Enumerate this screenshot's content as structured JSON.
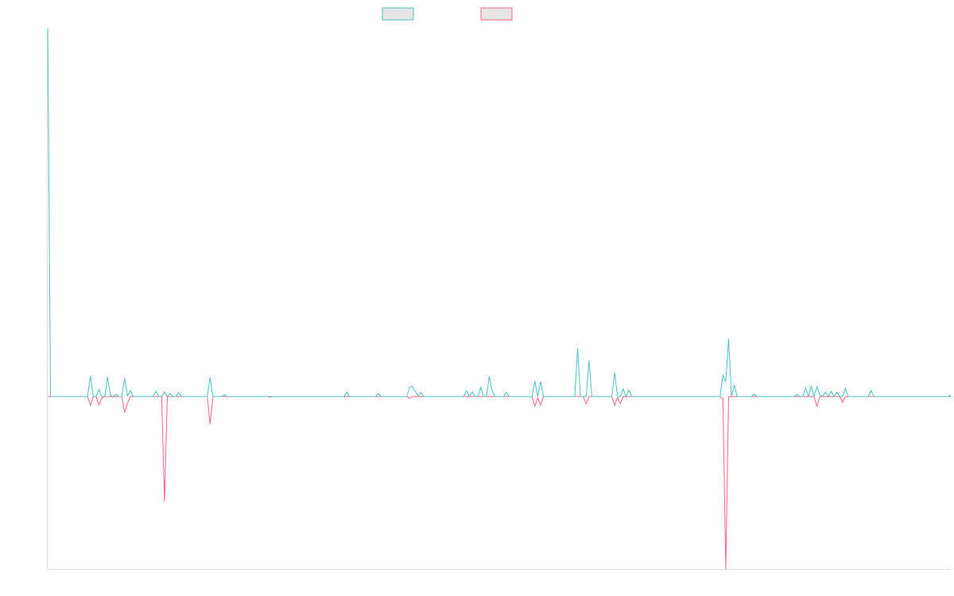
{
  "chart_data": {
    "type": "line",
    "title": "",
    "xlabel": "",
    "ylabel": "",
    "grid": false,
    "legend_position": "top-center",
    "x_count": 318,
    "ylim": [
      -0.3,
      0.64
    ],
    "colors": {
      "series_1": "#4bc0c0",
      "series_2": "#ff6384",
      "legend_fill": "#e6e6e6",
      "axis": "#e0e0e0"
    },
    "series": [
      {
        "color": "#4bc0c0",
        "values": {
          "0": 0.64,
          "15": 0.036,
          "16": 0,
          "18": 0.012,
          "19": 0,
          "21": 0.034,
          "22": 0.002,
          "24": 0.004,
          "25": 0,
          "27": 0.032,
          "28": 0.001,
          "29": 0.01,
          "30": 0,
          "38": 0.009,
          "39": 0,
          "41": 0.008,
          "42": 0,
          "43": 0.005,
          "45": 0,
          "46": 0.007,
          "47": 0,
          "57": 0.033,
          "58": 0,
          "62": 0.003,
          "63": 0,
          "105": 0.007,
          "106": 0,
          "116": 0.005,
          "117": 0,
          "127": 0.016,
          "128": 0.018,
          "129": 0.009,
          "130": 0.001,
          "131": 0.007,
          "132": 0,
          "147": 0.01,
          "148": 0,
          "149": 0.008,
          "150": 0,
          "152": 0.016,
          "153": 0,
          "155": 0.035,
          "156": 0.01,
          "157": 0,
          "161": 0.007,
          "162": 0,
          "171": 0.027,
          "172": 0,
          "173": 0.026,
          "174": 0,
          "186": 0.084,
          "187": 0,
          "190": 0.062,
          "191": 0,
          "199": 0.042,
          "200": 0,
          "202": 0.013,
          "203": 0,
          "204": 0.011,
          "205": 0,
          "237": 0.037,
          "238": 0.026,
          "239": 0.1,
          "240": 0,
          "241": 0.02,
          "242": 0,
          "248": 0.004,
          "249": 0,
          "263": 0.004,
          "264": 0,
          "266": 0.015,
          "267": 0,
          "268": 0.018,
          "269": 0,
          "270": 0.017,
          "271": 0.003,
          "272": 0,
          "273": 0.008,
          "274": 0,
          "275": 0.009,
          "276": 0,
          "277": 0.007,
          "278": 0,
          "280": 0.014,
          "281": 0,
          "289": 0.01,
          "290": 0,
          "317": 0.002
        },
        "default": 0
      },
      {
        "color": "#ff6384",
        "values": {
          "15": -0.015,
          "16": 0,
          "18": -0.015,
          "19": -0.003,
          "20": 0,
          "27": -0.028,
          "28": -0.012,
          "29": 0,
          "41": -0.182,
          "42": 0,
          "57": -0.048,
          "58": 0,
          "78": -0.001,
          "79": 0,
          "127": -0.003,
          "128": 0,
          "171": -0.017,
          "172": -0.002,
          "173": -0.015,
          "174": 0,
          "189": -0.013,
          "190": 0,
          "199": -0.015,
          "200": -0.002,
          "201": -0.012,
          "202": 0,
          "237": -0.004,
          "238": -0.3,
          "239": 0,
          "270": -0.017,
          "271": 0,
          "279": -0.01,
          "280": 0
        },
        "default": 0
      }
    ]
  }
}
